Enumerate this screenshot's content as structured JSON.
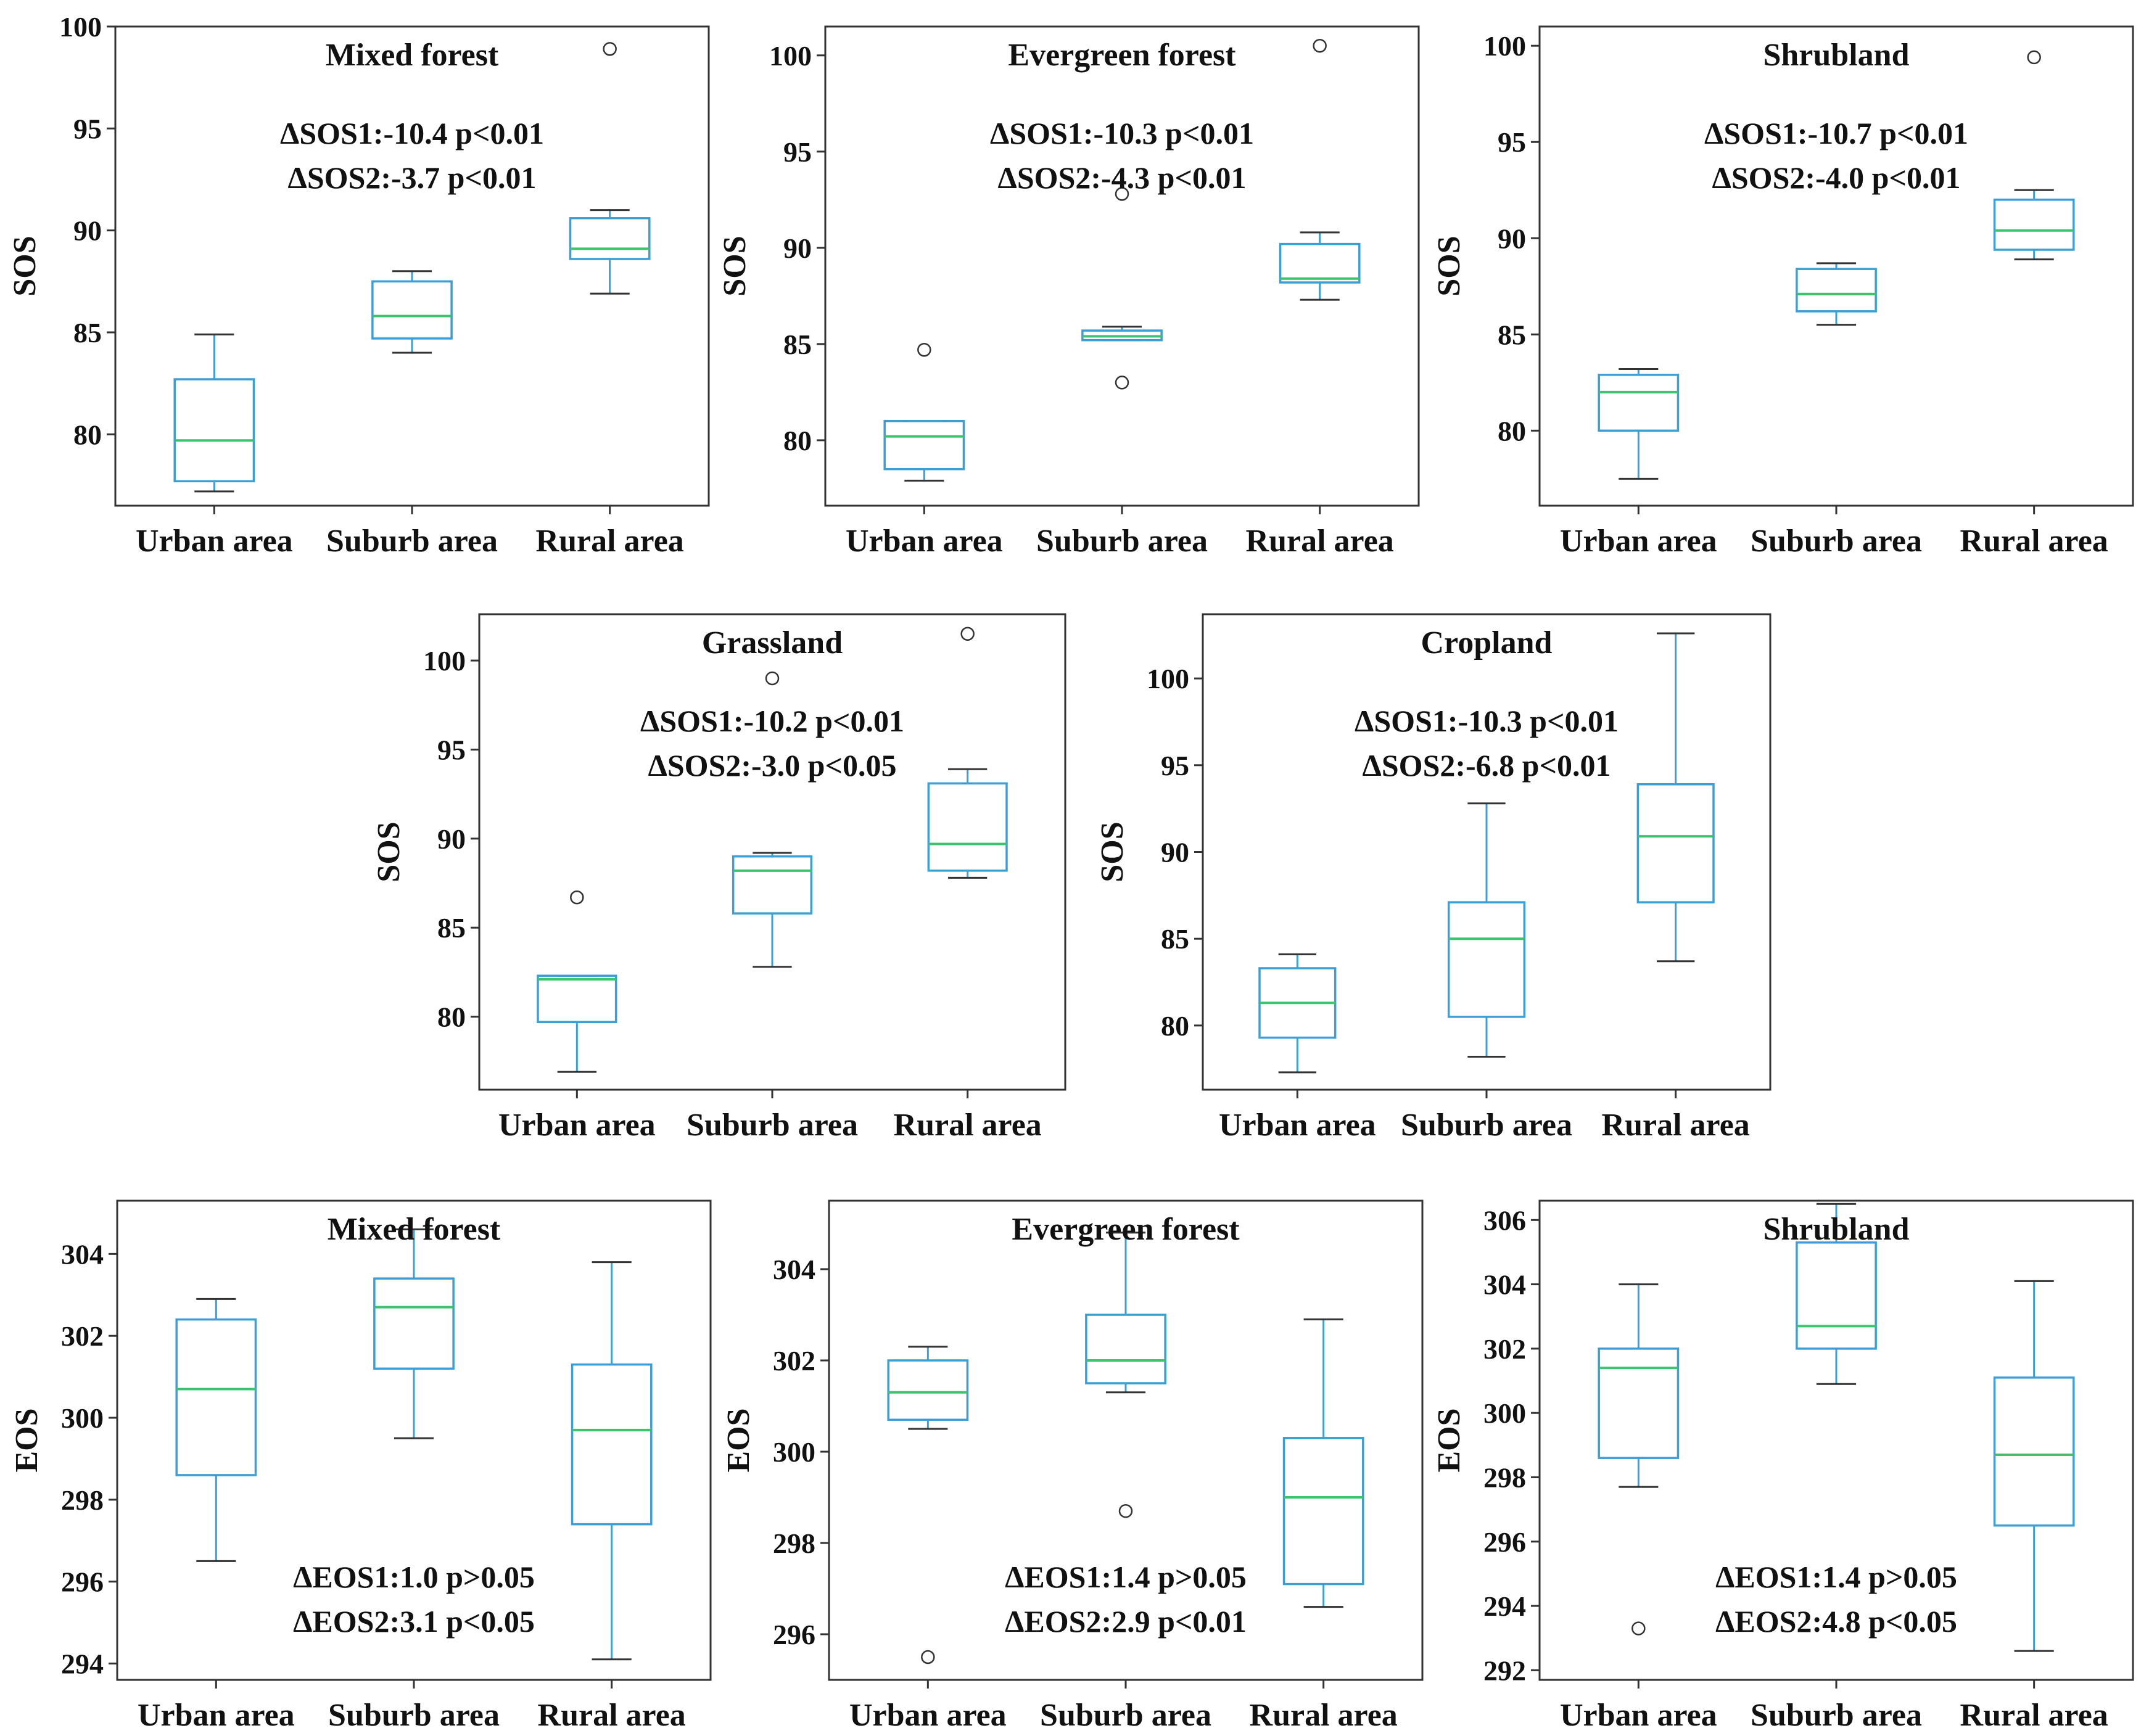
{
  "colors": {
    "box": "#3a9fd6",
    "median": "#3cc46e",
    "frame": "#333333",
    "outlier": "#333333"
  },
  "chart_data": [
    {
      "type": "box",
      "title": "Mixed forest",
      "ylabel": "SOS",
      "categories": [
        "Urban area",
        "Suburb area",
        "Rural area"
      ],
      "ylim": [
        76.5,
        100
      ],
      "yticks": [
        "80",
        "85",
        "90",
        "95",
        "100"
      ],
      "boxes": [
        {
          "whislo": 77.2,
          "q1": 77.7,
          "med": 79.7,
          "q3": 82.7,
          "whishi": 84.9,
          "fliers": []
        },
        {
          "whislo": 84.0,
          "q1": 84.7,
          "med": 85.8,
          "q3": 87.5,
          "whishi": 88.0,
          "fliers": []
        },
        {
          "whislo": 86.9,
          "q1": 88.6,
          "med": 89.1,
          "q3": 90.6,
          "whishi": 91.0,
          "fliers": [
            98.9
          ]
        }
      ],
      "annotations": [
        "ΔSOS1:-10.4 p<0.01",
        "ΔSOS2:-3.7   p<0.01"
      ],
      "annotation_position": "top"
    },
    {
      "type": "box",
      "title": "Evergreen forest",
      "ylabel": "SOS",
      "categories": [
        "Urban area",
        "Suburb area",
        "Rural area"
      ],
      "ylim": [
        76.6,
        101.5
      ],
      "yticks": [
        "80",
        "85",
        "90",
        "95",
        "100"
      ],
      "boxes": [
        {
          "whislo": 77.9,
          "q1": 78.5,
          "med": 80.2,
          "q3": 81.0,
          "whishi": 81.0,
          "fliers": [
            84.7
          ]
        },
        {
          "whislo": 85.2,
          "q1": 85.2,
          "med": 85.4,
          "q3": 85.7,
          "whishi": 85.9,
          "fliers": [
            83.0,
            92.8
          ]
        },
        {
          "whislo": 87.3,
          "q1": 88.2,
          "med": 88.4,
          "q3": 90.2,
          "whishi": 90.8,
          "fliers": [
            100.5
          ]
        }
      ],
      "annotations": [
        "ΔSOS1:-10.3 p<0.01",
        "ΔSOS2:-4.3   p<0.01"
      ],
      "annotation_position": "top"
    },
    {
      "type": "box",
      "title": "Shrubland",
      "ylabel": "SOS",
      "categories": [
        "Urban area",
        "Suburb area",
        "Rural area"
      ],
      "ylim": [
        76.1,
        101
      ],
      "yticks": [
        "80",
        "85",
        "90",
        "95",
        "100"
      ],
      "boxes": [
        {
          "whislo": 77.5,
          "q1": 80.0,
          "med": 82.0,
          "q3": 82.9,
          "whishi": 83.2,
          "fliers": []
        },
        {
          "whislo": 85.5,
          "q1": 86.2,
          "med": 87.1,
          "q3": 88.4,
          "whishi": 88.7,
          "fliers": []
        },
        {
          "whislo": 88.9,
          "q1": 89.4,
          "med": 90.4,
          "q3": 92.0,
          "whishi": 92.5,
          "fliers": [
            99.4
          ]
        }
      ],
      "annotations": [
        "ΔSOS1:-10.7 p<0.01",
        "ΔSOS2:-4.0   p<0.01"
      ],
      "annotation_position": "top"
    },
    {
      "type": "box",
      "title": "Grassland",
      "ylabel": "SOS",
      "categories": [
        "Urban area",
        "Suburb area",
        "Rural area"
      ],
      "ylim": [
        75.9,
        102.6
      ],
      "yticks": [
        "80",
        "85",
        "90",
        "95",
        "100"
      ],
      "boxes": [
        {
          "whislo": 76.9,
          "q1": 79.7,
          "med": 82.1,
          "q3": 82.3,
          "whishi": 82.3,
          "fliers": [
            86.7
          ]
        },
        {
          "whislo": 82.8,
          "q1": 85.8,
          "med": 88.2,
          "q3": 89.0,
          "whishi": 89.2,
          "fliers": [
            99.0
          ]
        },
        {
          "whislo": 87.8,
          "q1": 88.2,
          "med": 89.7,
          "q3": 93.1,
          "whishi": 93.9,
          "fliers": [
            101.5
          ]
        }
      ],
      "annotations": [
        "ΔSOS1:-10.2 p<0.01",
        "ΔSOS2:-3.0   p<0.05"
      ],
      "annotation_position": "top"
    },
    {
      "type": "box",
      "title": "Cropland",
      "ylabel": "SOS",
      "categories": [
        "Urban area",
        "Suburb area",
        "Rural area"
      ],
      "ylim": [
        76.3,
        103.7
      ],
      "yticks": [
        "80",
        "85",
        "90",
        "95",
        "100"
      ],
      "boxes": [
        {
          "whislo": 77.3,
          "q1": 79.3,
          "med": 81.3,
          "q3": 83.3,
          "whishi": 84.1,
          "fliers": []
        },
        {
          "whislo": 78.2,
          "q1": 80.5,
          "med": 85.0,
          "q3": 87.1,
          "whishi": 92.8,
          "fliers": []
        },
        {
          "whislo": 83.7,
          "q1": 87.1,
          "med": 90.9,
          "q3": 93.9,
          "whishi": 102.6,
          "fliers": []
        }
      ],
      "annotations": [
        "ΔSOS1:-10.3 p<0.01",
        "ΔSOS2:-6.8   p<0.01"
      ],
      "annotation_position": "top"
    },
    {
      "type": "box",
      "title": "Mixed forest",
      "ylabel": "EOS",
      "categories": [
        "Urban area",
        "Suburb area",
        "Rural area"
      ],
      "ylim": [
        293.6,
        305.3
      ],
      "yticks": [
        "294",
        "296",
        "298",
        "300",
        "302",
        "304"
      ],
      "boxes": [
        {
          "whislo": 296.5,
          "q1": 298.6,
          "med": 300.7,
          "q3": 302.4,
          "whishi": 302.9,
          "fliers": []
        },
        {
          "whislo": 299.5,
          "q1": 301.2,
          "med": 302.7,
          "q3": 303.4,
          "whishi": 304.6,
          "fliers": []
        },
        {
          "whislo": 294.1,
          "q1": 297.4,
          "med": 299.7,
          "q3": 301.3,
          "whishi": 303.8,
          "fliers": []
        }
      ],
      "annotations": [
        "ΔEOS1:1.0 p>0.05",
        "ΔEOS2:3.1 p<0.05"
      ],
      "annotation_position": "bottom"
    },
    {
      "type": "box",
      "title": "Evergreen forest",
      "ylabel": "EOS",
      "categories": [
        "Urban area",
        "Suburb area",
        "Rural area"
      ],
      "ylim": [
        295.0,
        305.5
      ],
      "yticks": [
        "296",
        "298",
        "300",
        "302",
        "304"
      ],
      "boxes": [
        {
          "whislo": 300.5,
          "q1": 300.7,
          "med": 301.3,
          "q3": 302.0,
          "whishi": 302.3,
          "fliers": [
            295.5
          ]
        },
        {
          "whislo": 301.3,
          "q1": 301.5,
          "med": 302.0,
          "q3": 303.0,
          "whishi": 304.8,
          "fliers": [
            298.7
          ]
        },
        {
          "whislo": 296.6,
          "q1": 297.1,
          "med": 299.0,
          "q3": 300.3,
          "whishi": 302.9,
          "fliers": []
        }
      ],
      "annotations": [
        "ΔEOS1:1.4 p>0.05",
        "ΔEOS2:2.9 p<0.01"
      ],
      "annotation_position": "bottom"
    },
    {
      "type": "box",
      "title": "Shrubland",
      "ylabel": "EOS",
      "categories": [
        "Urban area",
        "Suburb area",
        "Rural area"
      ],
      "ylim": [
        291.7,
        306.6
      ],
      "yticks": [
        "292",
        "294",
        "296",
        "298",
        "300",
        "302",
        "304",
        "306"
      ],
      "boxes": [
        {
          "whislo": 297.7,
          "q1": 298.6,
          "med": 301.4,
          "q3": 302.0,
          "whishi": 304.0,
          "fliers": [
            293.3
          ]
        },
        {
          "whislo": 300.9,
          "q1": 302.0,
          "med": 302.7,
          "q3": 305.3,
          "whishi": 306.5,
          "fliers": []
        },
        {
          "whislo": 292.6,
          "q1": 296.5,
          "med": 298.7,
          "q3": 301.1,
          "whishi": 304.1,
          "fliers": []
        }
      ],
      "annotations": [
        "ΔEOS1:1.4 p>0.05",
        "ΔEOS2:4.8 p<0.05"
      ],
      "annotation_position": "bottom"
    }
  ]
}
